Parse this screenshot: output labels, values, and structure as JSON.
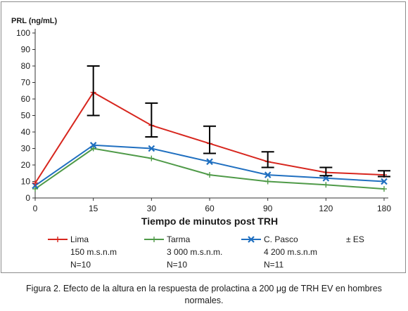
{
  "chart_data": {
    "type": "line",
    "title": "",
    "ylabel": "PRL (ng/mL)",
    "xlabel": "Tiempo de minutos post TRH",
    "categories": [
      "0",
      "15",
      "30",
      "60",
      "90",
      "120",
      "180"
    ],
    "ylim": [
      0,
      100
    ],
    "yticks": [
      0,
      10,
      20,
      30,
      40,
      50,
      60,
      70,
      80,
      90,
      100
    ],
    "grid": false,
    "legend_position": "bottom",
    "series": [
      {
        "name": "Lima",
        "subtitle": [
          "150 m.s.n.m",
          "N=10"
        ],
        "color": "#d7261e",
        "marker": "plus",
        "values": [
          9,
          64,
          44,
          33,
          22,
          15.5,
          14
        ]
      },
      {
        "name": "Tarma",
        "subtitle": [
          "3 000 m.s.n.m.",
          "N=10"
        ],
        "color": "#4f9a48",
        "marker": "plus",
        "values": [
          5.5,
          30,
          24,
          14,
          10,
          8,
          5.5
        ]
      },
      {
        "name": "C. Pasco",
        "subtitle": [
          "4 200 m.s.n.m",
          "N=11"
        ],
        "color": "#1f6fc0",
        "marker": "x",
        "values": [
          7.5,
          32,
          30,
          22,
          14,
          12,
          10
        ]
      }
    ],
    "error_bars": {
      "label": "± ES",
      "color": "#000000",
      "points": [
        {
          "x": "15",
          "low": 50,
          "high": 80
        },
        {
          "x": "30",
          "low": 37,
          "high": 57.5
        },
        {
          "x": "60",
          "low": 27,
          "high": 43.5
        },
        {
          "x": "90",
          "low": 18.5,
          "high": 28
        },
        {
          "x": "120",
          "low": 13.5,
          "high": 18.5
        },
        {
          "x": "180",
          "low": 13,
          "high": 16.5
        }
      ]
    }
  },
  "caption": {
    "line1": "Figura 2. Efecto de la altura en la respuesta de prolactina a 200 μg de TRH EV en hombres",
    "line2": "normales."
  }
}
